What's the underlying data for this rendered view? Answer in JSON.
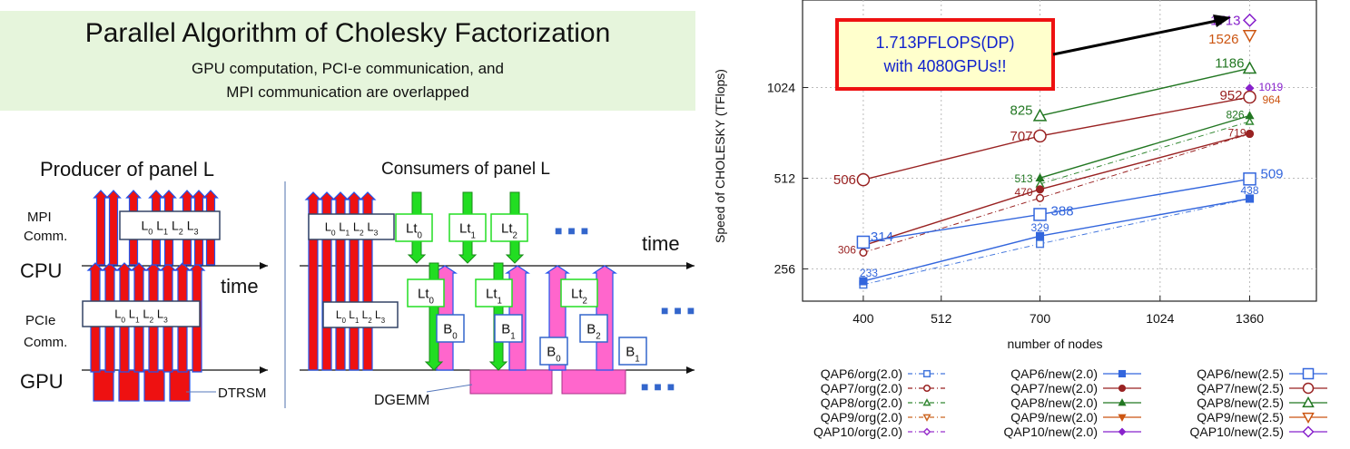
{
  "left": {
    "title": "Parallel Algorithm of Cholesky Factorization",
    "subtitle_line1": "GPU computation, PCI-e communication, and",
    "subtitle_line2": "MPI communication are overlapped",
    "producer_title": "Producer of panel L",
    "consumer_title": "Consumers of panel L",
    "row_labels": {
      "mpi_line1": "MPI",
      "mpi_line2": "Comm.",
      "cpu": "CPU",
      "pcie_line1": "PCIe",
      "pcie_line2": "Comm.",
      "gpu": "GPU"
    },
    "time_label": "time",
    "dtrsm": "DTRSM",
    "dgemm": "DGEMM",
    "ellipsis": "■ ■ ■",
    "panel_L_prefix": "L",
    "panel_L_subs": [
      "0",
      "1",
      "2",
      "3"
    ],
    "lt_prefix": "Lt",
    "b_prefix": "B",
    "subs": [
      "0",
      "1",
      "2"
    ],
    "colors": {
      "red": "#ee1111",
      "green": "#22dd22",
      "pink": "#ff66cc",
      "blue": "#2255ee",
      "title_bg": "#e6f5dc"
    }
  },
  "chart_data": {
    "type": "line",
    "ylabel": "Speed of CHOLESKY (TFlops)",
    "xlabel": "number of nodes",
    "x_ticks": [
      400,
      512,
      700,
      1024,
      1360
    ],
    "y_ticks": [
      256,
      512,
      1024
    ],
    "x_scale": "log",
    "y_scale": "log",
    "xlim": [
      330,
      1680
    ],
    "ylim": [
      200,
      2000
    ],
    "grid": true,
    "legend_placement": "bottom",
    "callout_line1": "1.713PFLOPS(DP)",
    "callout_line2": "with 4080GPUs!!",
    "series": [
      {
        "name": "QAP6/org(2.0)",
        "color": "#4477dd",
        "dash": true,
        "marker": "sq",
        "fill": false,
        "size": "s",
        "x": [
          400,
          700,
          1360
        ],
        "y": [
          227,
          310,
          438
        ]
      },
      {
        "name": "QAP7/org(2.0)",
        "color": "#992222",
        "dash": true,
        "marker": "ci",
        "fill": false,
        "size": "s",
        "x": [
          400,
          700,
          1360
        ],
        "y": [
          290,
          440,
          719
        ]
      },
      {
        "name": "QAP8/org(2.0)",
        "color": "#338833",
        "dash": true,
        "marker": "tu",
        "fill": false,
        "size": "s",
        "x": [
          700,
          1360
        ],
        "y": [
          490,
          790
        ]
      },
      {
        "name": "QAP9/org(2.0)",
        "color": "#cc6622",
        "dash": true,
        "marker": "td",
        "fill": false,
        "size": "s",
        "x": [
          1360
        ],
        "y": [
          950
        ]
      },
      {
        "name": "QAP10/org(2.0)",
        "color": "#9933cc",
        "dash": true,
        "marker": "di",
        "fill": false,
        "size": "s",
        "x": [
          1360
        ],
        "y": [
          1019
        ]
      },
      {
        "name": "QAP6/new(2.0)",
        "color": "#3366dd",
        "dash": false,
        "marker": "sq",
        "fill": true,
        "size": "s",
        "x": [
          400,
          700,
          1360
        ],
        "y": [
          233,
          329,
          438
        ]
      },
      {
        "name": "QAP7/new(2.0)",
        "color": "#992222",
        "dash": false,
        "marker": "ci",
        "fill": true,
        "size": "s",
        "x": [
          400,
          700,
          1360
        ],
        "y": [
          306,
          470,
          719
        ]
      },
      {
        "name": "QAP8/new(2.0)",
        "color": "#227722",
        "dash": false,
        "marker": "tu",
        "fill": true,
        "size": "s",
        "x": [
          700,
          1360
        ],
        "y": [
          513,
          826
        ]
      },
      {
        "name": "QAP9/new(2.0)",
        "color": "#cc5511",
        "dash": false,
        "marker": "td",
        "fill": true,
        "size": "s",
        "x": [
          1360
        ],
        "y": [
          964
        ]
      },
      {
        "name": "QAP10/new(2.0)",
        "color": "#8822cc",
        "dash": false,
        "marker": "di",
        "fill": true,
        "size": "s",
        "x": [
          1360
        ],
        "y": [
          1019
        ]
      },
      {
        "name": "QAP6/new(2.5)",
        "color": "#3366dd",
        "dash": false,
        "marker": "sq",
        "fill": false,
        "size": "l",
        "x": [
          400,
          700,
          1360
        ],
        "y": [
          314,
          388,
          509
        ]
      },
      {
        "name": "QAP7/new(2.5)",
        "color": "#992222",
        "dash": false,
        "marker": "ci",
        "fill": false,
        "size": "l",
        "x": [
          400,
          700,
          1360
        ],
        "y": [
          506,
          707,
          952
        ]
      },
      {
        "name": "QAP8/new(2.5)",
        "color": "#227722",
        "dash": false,
        "marker": "tu",
        "fill": false,
        "size": "l",
        "x": [
          700,
          1360
        ],
        "y": [
          825,
          1186
        ]
      },
      {
        "name": "QAP9/new(2.5)",
        "color": "#cc5511",
        "dash": false,
        "marker": "td",
        "fill": false,
        "size": "l",
        "x": [
          1360
        ],
        "y": [
          1526
        ]
      },
      {
        "name": "QAP10/new(2.5)",
        "color": "#8822cc",
        "dash": false,
        "marker": "di",
        "fill": false,
        "size": "l",
        "x": [
          1360
        ],
        "y": [
          1713
        ]
      }
    ],
    "data_labels": [
      {
        "x": 400,
        "y": 233,
        "text": "233",
        "color": "#3366dd"
      },
      {
        "x": 400,
        "y": 314,
        "text": "314",
        "color": "#3366dd"
      },
      {
        "x": 400,
        "y": 306,
        "text": "306",
        "color": "#992222"
      },
      {
        "x": 400,
        "y": 506,
        "text": "506",
        "color": "#992222"
      },
      {
        "x": 700,
        "y": 329,
        "text": "329",
        "color": "#3366dd"
      },
      {
        "x": 700,
        "y": 388,
        "text": "388",
        "color": "#3366dd"
      },
      {
        "x": 700,
        "y": 470,
        "text": "470",
        "color": "#992222"
      },
      {
        "x": 700,
        "y": 513,
        "text": "513",
        "color": "#227722"
      },
      {
        "x": 700,
        "y": 707,
        "text": "707",
        "color": "#992222"
      },
      {
        "x": 700,
        "y": 825,
        "text": "825",
        "color": "#227722"
      },
      {
        "x": 1360,
        "y": 438,
        "text": "438",
        "color": "#3366dd"
      },
      {
        "x": 1360,
        "y": 509,
        "text": "509",
        "color": "#3366dd"
      },
      {
        "x": 1360,
        "y": 719,
        "text": "719",
        "color": "#992222"
      },
      {
        "x": 1360,
        "y": 826,
        "text": "826",
        "color": "#227722"
      },
      {
        "x": 1360,
        "y": 952,
        "text": "952",
        "color": "#992222"
      },
      {
        "x": 1360,
        "y": 964,
        "text": "964",
        "color": "#cc5511"
      },
      {
        "x": 1360,
        "y": 1019,
        "text": "1019",
        "color": "#8822cc"
      },
      {
        "x": 1360,
        "y": 1186,
        "text": "1186",
        "color": "#227722"
      },
      {
        "x": 1360,
        "y": 1526,
        "text": "1526",
        "color": "#cc5511"
      },
      {
        "x": 1360,
        "y": 1713,
        "text": "1713",
        "color": "#8822cc"
      }
    ]
  }
}
